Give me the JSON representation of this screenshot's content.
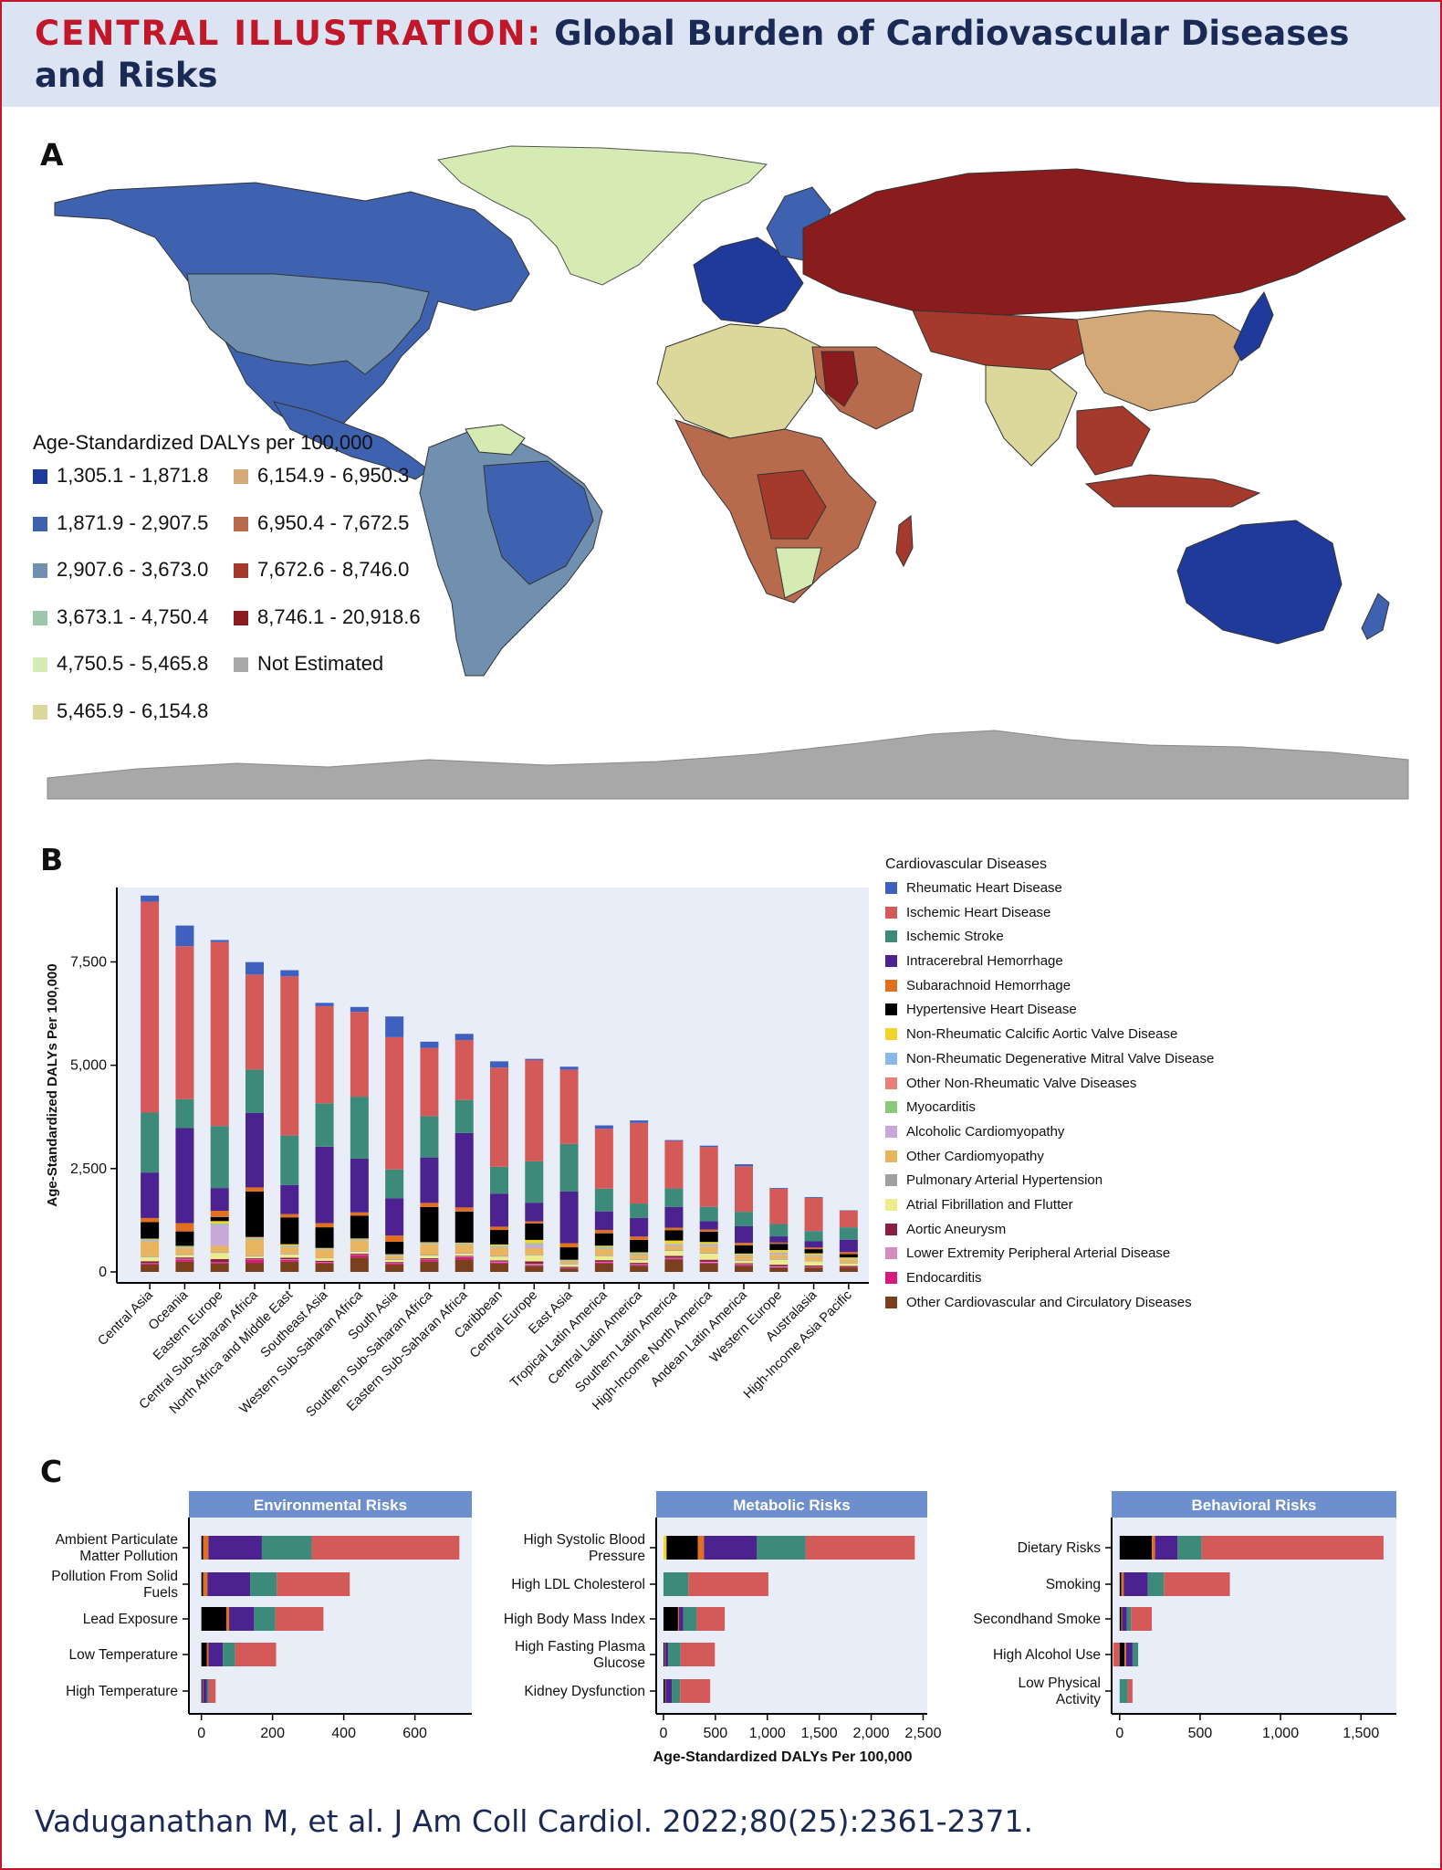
{
  "header": {
    "title_prefix": "CENTRAL ILLUSTRATION:",
    "title_rest": "Global Burden of Cardiovascular Diseases and Risks"
  },
  "panels": {
    "a": "A",
    "b": "B",
    "c": "C"
  },
  "citation": "Vaduganathan M, et al. J Am Coll Cardiol. 2022;80(25):2361-2371.",
  "map_legend": {
    "title": "Age-Standardized DALYs per 100,000",
    "items": [
      {
        "label": "1,305.1 - 1,871.8",
        "color": "#1f3a9a"
      },
      {
        "label": "1,871.9 - 2,907.5",
        "color": "#3f62b0"
      },
      {
        "label": "2,907.6 - 3,673.0",
        "color": "#7190b0"
      },
      {
        "label": "3,673.1 - 4,750.4",
        "color": "#9cc7aa"
      },
      {
        "label": "4,750.5 - 5,465.8",
        "color": "#d6ebb3"
      },
      {
        "label": "5,465.9 - 6,154.8",
        "color": "#dcd79a"
      },
      {
        "label": "6,154.9 - 6,950.3",
        "color": "#d2a977"
      },
      {
        "label": "6,950.4 - 7,672.5",
        "color": "#b86a4c"
      },
      {
        "label": "7,672.6 - 8,746.0",
        "color": "#a53a2c"
      },
      {
        "label": "8,746.1 - 20,918.6",
        "color": "#8b1c1d"
      },
      {
        "label": "Not Estimated",
        "color": "#a8a8a8"
      }
    ]
  },
  "chart_data": [
    {
      "type": "bar",
      "stacked": true,
      "ylabel": "Age-Standardized DALYs Per 100,000",
      "yticks": [
        0,
        2500,
        5000,
        7500
      ],
      "ytick_labels": [
        "0",
        "2,500",
        "5,000",
        "7,500"
      ],
      "ylim": [
        0,
        9300
      ],
      "legend_title": "Cardiovascular Diseases",
      "legend_position": "right",
      "categories": [
        "Central Asia",
        "Oceania",
        "Eastern Europe",
        "Central Sub-Saharan Africa",
        "North Africa and Middle East",
        "Southeast Asia",
        "Western Sub-Saharan Africa",
        "South Asia",
        "Southern Sub-Saharan Africa",
        "Eastern Sub-Saharan Africa",
        "Caribbean",
        "Central Europe",
        "East Asia",
        "Tropical Latin America",
        "Central Latin America",
        "Southern Latin America",
        "High-Income North America",
        "Andean Latin America",
        "Western Europe",
        "Australasia",
        "High-Income Asia Pacific"
      ],
      "series": [
        {
          "name": "Other Cardiovascular and Circulatory Diseases",
          "color": "#7a3f1d",
          "values": [
            180,
            250,
            200,
            220,
            250,
            200,
            350,
            180,
            250,
            300,
            200,
            150,
            80,
            200,
            150,
            300,
            200,
            150,
            100,
            100,
            100
          ]
        },
        {
          "name": "Endocarditis",
          "color": "#d6197a",
          "values": [
            20,
            50,
            20,
            80,
            40,
            30,
            60,
            30,
            40,
            60,
            30,
            15,
            10,
            30,
            25,
            20,
            20,
            25,
            15,
            10,
            10
          ]
        },
        {
          "name": "Lower Extremity Peripheral Arterial Disease",
          "color": "#d48bbf",
          "values": [
            10,
            20,
            10,
            10,
            15,
            10,
            10,
            10,
            10,
            10,
            20,
            30,
            5,
            15,
            15,
            20,
            25,
            15,
            20,
            15,
            5
          ]
        },
        {
          "name": "Aortic Aneurysm",
          "color": "#8a1f45",
          "values": [
            50,
            30,
            80,
            20,
            40,
            30,
            20,
            20,
            30,
            20,
            30,
            60,
            30,
            40,
            30,
            50,
            50,
            20,
            40,
            30,
            30
          ]
        },
        {
          "name": "Atrial Fibrillation and Flutter",
          "color": "#ecec8c",
          "values": [
            100,
            60,
            150,
            40,
            80,
            60,
            50,
            50,
            70,
            50,
            90,
            150,
            60,
            100,
            70,
            120,
            150,
            60,
            120,
            100,
            60
          ]
        },
        {
          "name": "Pulmonary Arterial Hypertension",
          "color": "#a0a0a0",
          "values": [
            20,
            20,
            20,
            20,
            20,
            10,
            20,
            20,
            20,
            20,
            20,
            20,
            20,
            20,
            20,
            20,
            20,
            20,
            20,
            15,
            15
          ]
        },
        {
          "name": "Other Cardiomyopathy",
          "color": "#e8b45e",
          "values": [
            350,
            150,
            150,
            400,
            150,
            200,
            250,
            80,
            250,
            200,
            200,
            150,
            50,
            150,
            100,
            100,
            150,
            100,
            100,
            100,
            80
          ]
        },
        {
          "name": "Alcoholic Cardiomyopathy",
          "color": "#c8a8d8",
          "values": [
            20,
            10,
            500,
            10,
            10,
            10,
            10,
            10,
            10,
            10,
            10,
            80,
            10,
            10,
            10,
            20,
            20,
            5,
            20,
            10,
            5
          ]
        },
        {
          "name": "Myocarditis",
          "color": "#8cc87a",
          "values": [
            20,
            20,
            20,
            20,
            20,
            10,
            20,
            10,
            20,
            20,
            20,
            20,
            10,
            20,
            20,
            10,
            10,
            20,
            10,
            10,
            5
          ]
        },
        {
          "name": "Other Non-Rheumatic Valve Diseases",
          "color": "#e8807a",
          "values": [
            5,
            5,
            5,
            10,
            5,
            5,
            5,
            5,
            5,
            5,
            5,
            5,
            5,
            5,
            5,
            5,
            10,
            5,
            10,
            10,
            5
          ]
        },
        {
          "name": "Non-Rheumatic Degenerative Mitral Valve Disease",
          "color": "#8ab8e8",
          "values": [
            10,
            5,
            15,
            5,
            10,
            5,
            5,
            5,
            5,
            5,
            10,
            15,
            5,
            15,
            10,
            15,
            20,
            5,
            15,
            10,
            5
          ]
        },
        {
          "name": "Non-Rheumatic Calcific Aortic Valve Disease",
          "color": "#f0d42a",
          "values": [
            20,
            10,
            60,
            10,
            30,
            10,
            10,
            10,
            10,
            10,
            30,
            80,
            10,
            30,
            20,
            80,
            50,
            20,
            60,
            40,
            30
          ]
        },
        {
          "name": "Hypertensive Heart Disease",
          "color": "#000000",
          "values": [
            400,
            350,
            100,
            1100,
            650,
            500,
            550,
            300,
            850,
            750,
            350,
            400,
            300,
            300,
            300,
            250,
            250,
            200,
            150,
            100,
            80
          ]
        },
        {
          "name": "Subarachnoid Hemorrhage",
          "color": "#e07020",
          "values": [
            100,
            200,
            150,
            100,
            80,
            100,
            80,
            150,
            100,
            100,
            80,
            50,
            100,
            80,
            80,
            60,
            50,
            60,
            30,
            40,
            50
          ]
        },
        {
          "name": "Intracerebral Hemorrhage",
          "color": "#4b2290",
          "values": [
            1100,
            2300,
            550,
            1800,
            700,
            1850,
            1300,
            900,
            1100,
            1800,
            800,
            450,
            1250,
            450,
            450,
            500,
            200,
            400,
            150,
            150,
            300
          ]
        },
        {
          "name": "Ischemic Stroke",
          "color": "#3e8a7a",
          "values": [
            1450,
            700,
            1500,
            1050,
            1200,
            1050,
            1500,
            700,
            1000,
            800,
            650,
            1000,
            1150,
            550,
            350,
            450,
            350,
            350,
            300,
            250,
            300
          ]
        },
        {
          "name": "Ischemic Heart Disease",
          "color": "#d45a5a",
          "values": [
            5100,
            3700,
            4450,
            2300,
            3850,
            2350,
            2050,
            3200,
            1650,
            1450,
            2400,
            2450,
            1800,
            1450,
            1950,
            1150,
            1450,
            1100,
            850,
            800,
            400
          ]
        },
        {
          "name": "Rheumatic Heart Disease",
          "color": "#4060c0",
          "values": [
            150,
            500,
            50,
            300,
            150,
            80,
            120,
            500,
            150,
            150,
            150,
            30,
            70,
            80,
            60,
            20,
            30,
            50,
            20,
            20,
            10
          ]
        }
      ]
    },
    {
      "type": "bar",
      "orientation": "horizontal",
      "stacked": true,
      "title": "Environmental Risks",
      "xticks": [
        0,
        200,
        400,
        600
      ],
      "xtick_labels": [
        "0",
        "200",
        "400",
        "600"
      ],
      "xlim": [
        -35,
        760
      ],
      "categories": [
        "Ambient Particulate Matter Pollution",
        "Pollution From Solid Fuels",
        "Lead Exposure",
        "Low Temperature",
        "High Temperature"
      ],
      "category_lines": [
        [
          "Ambient Particulate",
          "Matter Pollution"
        ],
        [
          "Pollution From Solid",
          "Fuels"
        ],
        [
          "Lead Exposure"
        ],
        [
          "Low Temperature"
        ],
        [
          "High Temperature"
        ]
      ],
      "series": [
        {
          "name": "Hypertensive Heart Disease",
          "color": "#000000",
          "values": [
            5,
            5,
            70,
            15,
            3
          ]
        },
        {
          "name": "Subarachnoid Hemorrhage",
          "color": "#e07020",
          "values": [
            15,
            12,
            8,
            5,
            2
          ]
        },
        {
          "name": "Intracerebral Hemorrhage",
          "color": "#4b2290",
          "values": [
            150,
            120,
            70,
            40,
            10
          ]
        },
        {
          "name": "Ischemic Stroke",
          "color": "#3e8a7a",
          "values": [
            140,
            75,
            60,
            35,
            5
          ]
        },
        {
          "name": "Ischemic Heart Disease",
          "color": "#d45a5a",
          "values": [
            415,
            205,
            135,
            115,
            20
          ]
        }
      ]
    },
    {
      "type": "bar",
      "orientation": "horizontal",
      "stacked": true,
      "title": "Metabolic Risks",
      "xlabel": "Age-Standardized DALYs Per 100,000",
      "xticks": [
        0,
        500,
        1000,
        1500,
        2000,
        2500
      ],
      "xtick_labels": [
        "0",
        "500",
        "1,000",
        "1,500",
        "2,000",
        "2,500"
      ],
      "xlim": [
        -70,
        2540
      ],
      "categories": [
        "High Systolic Blood Pressure",
        "High LDL Cholesterol",
        "High Body Mass Index",
        "High Fasting Plasma Glucose",
        "Kidney Dysfunction"
      ],
      "category_lines": [
        [
          "High Systolic Blood",
          "Pressure"
        ],
        [
          "High LDL Cholesterol"
        ],
        [
          "High Body Mass Index"
        ],
        [
          "High Fasting Plasma",
          "Glucose"
        ],
        [
          "Kidney Dysfunction"
        ]
      ],
      "series": [
        {
          "name": "Rheumatic Heart Disease",
          "color": "#4060c0",
          "values": [
            0,
            0,
            0,
            0,
            0
          ]
        },
        {
          "name": "Non-Rheumatic Calcific Aortic Valve Disease",
          "color": "#f0d42a",
          "values": [
            30,
            0,
            0,
            0,
            0
          ]
        },
        {
          "name": "Hypertensive Heart Disease",
          "color": "#000000",
          "values": [
            300,
            0,
            140,
            10,
            15
          ]
        },
        {
          "name": "Subarachnoid Hemorrhage",
          "color": "#e07020",
          "values": [
            60,
            0,
            10,
            5,
            5
          ]
        },
        {
          "name": "Intracerebral Hemorrhage",
          "color": "#4b2290",
          "values": [
            510,
            0,
            40,
            30,
            60
          ]
        },
        {
          "name": "Ischemic Stroke",
          "color": "#3e8a7a",
          "values": [
            470,
            240,
            130,
            120,
            80
          ]
        },
        {
          "name": "Ischemic Heart Disease",
          "color": "#d45a5a",
          "values": [
            1050,
            770,
            270,
            330,
            290
          ]
        }
      ]
    },
    {
      "type": "bar",
      "orientation": "horizontal",
      "stacked": true,
      "title": "Behavioral Risks",
      "xticks": [
        0,
        500,
        1000,
        1500
      ],
      "xtick_labels": [
        "0",
        "500",
        "1,000",
        "1,500"
      ],
      "xlim": [
        -50,
        1720
      ],
      "categories": [
        "Dietary Risks",
        "Smoking",
        "Secondhand Smoke",
        "High Alcohol Use",
        "Low Physical Activity"
      ],
      "category_lines": [
        [
          "Dietary Risks"
        ],
        [
          "Smoking"
        ],
        [
          "Secondhand Smoke"
        ],
        [
          "High Alcohol Use"
        ],
        [
          "Low Physical",
          "Activity"
        ]
      ],
      "series": [
        {
          "name": "Ischemic Heart Disease",
          "color": "#d45a5a",
          "negative": true,
          "values": [
            0,
            0,
            0,
            -40,
            0
          ]
        },
        {
          "name": "Hypertensive Heart Disease",
          "color": "#000000",
          "values": [
            200,
            10,
            10,
            30,
            0
          ]
        },
        {
          "name": "Subarachnoid Hemorrhage",
          "color": "#e07020",
          "values": [
            20,
            15,
            5,
            10,
            0
          ]
        },
        {
          "name": "Intracerebral Hemorrhage",
          "color": "#4b2290",
          "values": [
            140,
            150,
            30,
            40,
            0
          ]
        },
        {
          "name": "Ischemic Stroke",
          "color": "#3e8a7a",
          "values": [
            150,
            100,
            25,
            35,
            50
          ]
        },
        {
          "name": "Ischemic Heart Disease",
          "color": "#d45a5a",
          "values": [
            1130,
            410,
            130,
            0,
            30
          ]
        }
      ]
    }
  ]
}
